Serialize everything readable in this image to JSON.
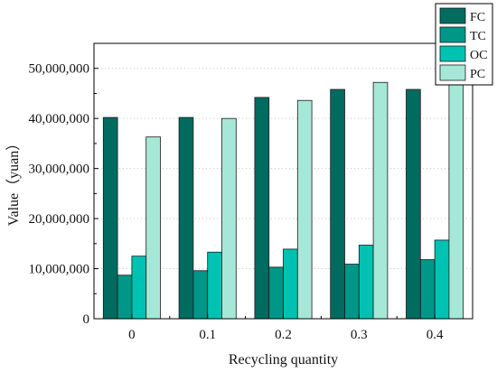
{
  "chart_data": {
    "type": "bar",
    "title": "",
    "xlabel": "Recycling quantity",
    "ylabel": "Value（yuan）",
    "categories": [
      "0",
      "0.1",
      "0.2",
      "0.3",
      "0.4"
    ],
    "ylim": [
      0,
      55000000
    ],
    "yticks": [
      0,
      10000000,
      20000000,
      30000000,
      40000000,
      50000000
    ],
    "ytick_labels": [
      "0",
      "10,000,000",
      "20,000,000",
      "30,000,000",
      "40,000,000",
      "50,000,000"
    ],
    "grid": "horizontal dotted",
    "legend_position": "top-right, outside plot",
    "series": [
      {
        "name": "FC",
        "color": "#006b5f",
        "values": [
          40200000,
          40200000,
          44200000,
          45800000,
          45800000
        ]
      },
      {
        "name": "TC",
        "color": "#009688",
        "values": [
          8700000,
          9600000,
          10300000,
          10900000,
          11800000
        ]
      },
      {
        "name": "OC",
        "color": "#00c2b2",
        "values": [
          12500000,
          13300000,
          13900000,
          14700000,
          15700000
        ]
      },
      {
        "name": "PC",
        "color": "#a6e8d8",
        "values": [
          36300000,
          40000000,
          43600000,
          47200000,
          50800000
        ]
      }
    ]
  }
}
